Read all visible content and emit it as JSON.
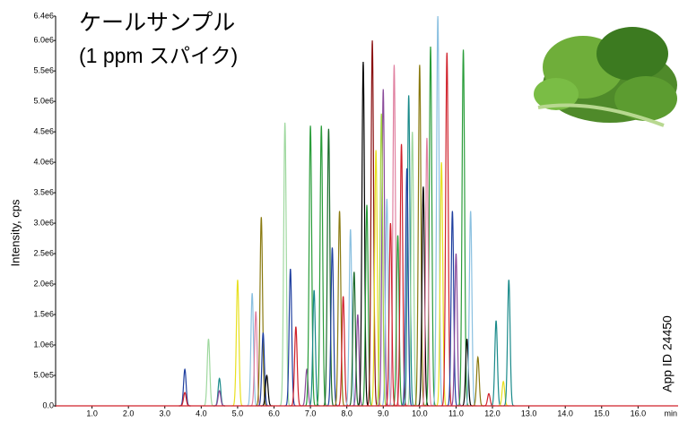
{
  "chart_data": {
    "type": "chromatogram",
    "title": "ケールサンプル",
    "subtitle": "(1 ppm スパイク)",
    "y_label": "Intensity, cps",
    "x_label": "min",
    "annotation": "App ID 24450",
    "xlim": [
      0,
      17.1
    ],
    "ylim": [
      0,
      6400000
    ],
    "xticks": [
      {
        "value": 1,
        "label": "1.0"
      },
      {
        "value": 2,
        "label": "2.0"
      },
      {
        "value": 3,
        "label": "3.0"
      },
      {
        "value": 4,
        "label": "4.0"
      },
      {
        "value": 5,
        "label": "5.0"
      },
      {
        "value": 6,
        "label": "6.0"
      },
      {
        "value": 7,
        "label": "7.0"
      },
      {
        "value": 8,
        "label": "8.0"
      },
      {
        "value": 9,
        "label": "9.0"
      },
      {
        "value": 10,
        "label": "10.0"
      },
      {
        "value": 11,
        "label": "11.0"
      },
      {
        "value": 12,
        "label": "12.0"
      },
      {
        "value": 13,
        "label": "13.0"
      },
      {
        "value": 14,
        "label": "14.0"
      },
      {
        "value": 15,
        "label": "15.0"
      },
      {
        "value": 16,
        "label": "16.0"
      }
    ],
    "yticks": [
      {
        "value": 0,
        "label": "0.0"
      },
      {
        "value": 500000,
        "label": "5.0e5"
      },
      {
        "value": 1000000,
        "label": "1.0e6"
      },
      {
        "value": 1500000,
        "label": "1.5e6"
      },
      {
        "value": 2000000,
        "label": "2.0e6"
      },
      {
        "value": 2500000,
        "label": "2.5e6"
      },
      {
        "value": 3000000,
        "label": "3.0e6"
      },
      {
        "value": 3500000,
        "label": "3.5e6"
      },
      {
        "value": 4000000,
        "label": "4.0e6"
      },
      {
        "value": 4500000,
        "label": "4.5e6"
      },
      {
        "value": 5000000,
        "label": "5.0e6"
      },
      {
        "value": 5500000,
        "label": "5.5e6"
      },
      {
        "value": 6000000,
        "label": "6.0e6"
      },
      {
        "value": 6400000,
        "label": "6.4e6"
      }
    ],
    "x": [
      3.55,
      3.55,
      4.2,
      4.5,
      4.5,
      5.0,
      5.4,
      5.5,
      5.65,
      5.7,
      5.8,
      6.3,
      6.45,
      6.6,
      6.9,
      7.0,
      7.1,
      7.3,
      7.5,
      7.6,
      7.8,
      7.9,
      8.1,
      8.3,
      8.45,
      8.55,
      8.7,
      8.8,
      9.0,
      9.1,
      9.3,
      9.4,
      9.5,
      9.7,
      9.8,
      10.0,
      10.1,
      10.3,
      10.5,
      10.6,
      10.75,
      10.9,
      11.0,
      11.2,
      11.3,
      11.4,
      11.6,
      11.9,
      12.1,
      12.3,
      12.45,
      8.95,
      9.65,
      10.2,
      9.2,
      8.2
    ],
    "values": [
      600000,
      220000,
      1100000,
      450000,
      250000,
      2070000,
      1850000,
      1550000,
      3100000,
      1200000,
      500000,
      4650000,
      2250000,
      1300000,
      600000,
      4600000,
      1900000,
      4600000,
      4550000,
      2600000,
      3200000,
      1800000,
      2900000,
      1500000,
      5650000,
      3300000,
      6000000,
      4200000,
      5200000,
      3400000,
      5600000,
      2800000,
      4300000,
      5100000,
      4500000,
      5600000,
      3600000,
      5900000,
      6400000,
      4000000,
      5800000,
      3200000,
      2500000,
      5850000,
      1100000,
      3200000,
      800000,
      200000,
      1400000,
      400000,
      2070000,
      4800000,
      3900000,
      4400000,
      3000000,
      2200000
    ],
    "colors": [
      "#1f3f9f",
      "#d0202a",
      "#9fd89f",
      "#1a8a8a",
      "#8a4a9a",
      "#e8e020",
      "#8ac0e0",
      "#e080a0",
      "#8a7a10",
      "#1f3f9f",
      "#000000",
      "#9fd89f",
      "#1f3f9f",
      "#d0202a",
      "#8a4a9a",
      "#2a9d3a",
      "#1a8a8a",
      "#2a9d3a",
      "#1a6a2a",
      "#1f3f9f",
      "#8a7a10",
      "#d0202a",
      "#8ac0e0",
      "#8a4a9a",
      "#000000",
      "#2a9d3a",
      "#8a1010",
      "#e8e020",
      "#8a4a9a",
      "#8ac0e0",
      "#e080a0",
      "#2a9d3a",
      "#d0202a",
      "#1a8a8a",
      "#9fd89f",
      "#8a7a10",
      "#000000",
      "#2a9d3a",
      "#8ac0e0",
      "#e8e020",
      "#d0202a",
      "#1f3f9f",
      "#8a4a9a",
      "#2a9d3a",
      "#000000",
      "#8ac0e0",
      "#8a7a10",
      "#d0202a",
      "#1a8a8a",
      "#e8e020",
      "#1a8a8a",
      "#a0d040",
      "#1f3f9f",
      "#e080a0",
      "#d0202a",
      "#1a6a2a"
    ]
  }
}
